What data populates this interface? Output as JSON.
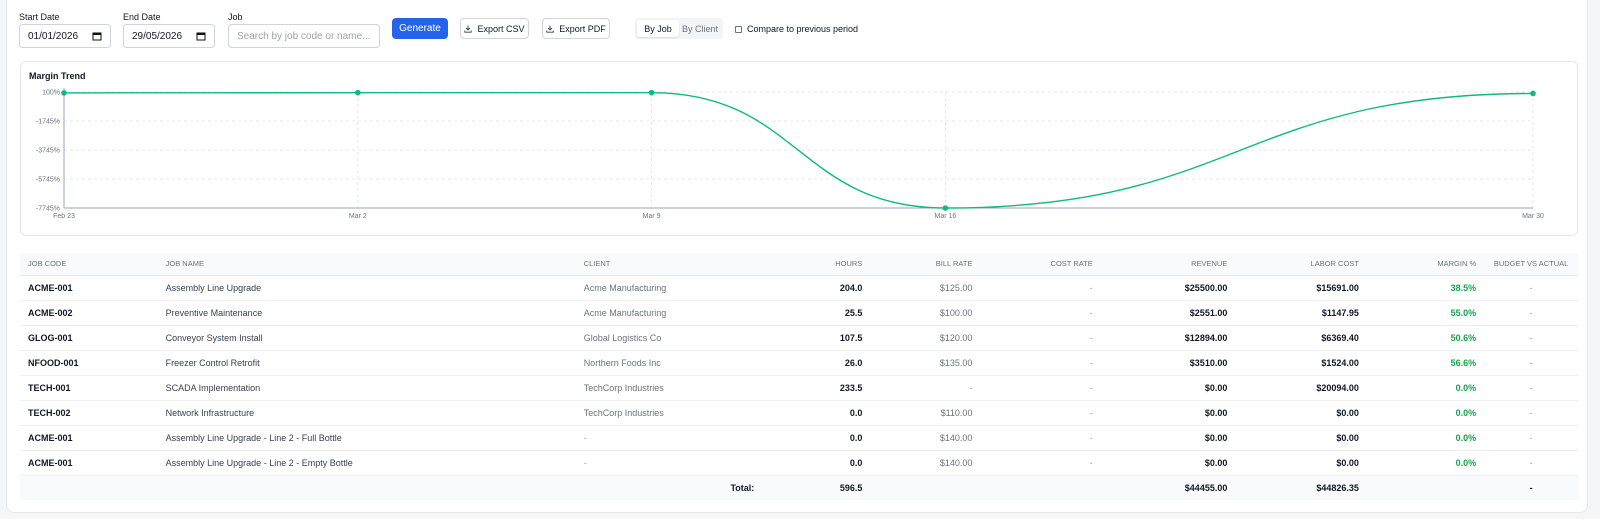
{
  "filters": {
    "start_label": "Start Date",
    "start_value": "01/01/2026",
    "end_label": "End Date",
    "end_value": "29/05/2026",
    "job_label": "Job",
    "job_placeholder": "Search by job code or name...",
    "generate_label": "Generate",
    "export_csv_label": "Export CSV",
    "export_pdf_label": "Export PDF",
    "view_by_job": "By Job",
    "view_by_client": "By Client",
    "compare_label": "Compare to previous period"
  },
  "chart_data": {
    "type": "line",
    "title": "Margin Trend",
    "x": [
      "Feb 23",
      "Mar 2",
      "Mar 9",
      "Mar 16",
      "Mar 30"
    ],
    "series": [
      {
        "values": [
          38.5,
          55.0,
          56.6,
          -7745,
          0.0
        ]
      }
    ],
    "y_ticks": [
      "100%",
      "-1745%",
      "-3745%",
      "-5745%",
      "-7745%"
    ],
    "ylim": [
      -7745,
      100
    ],
    "grid": true,
    "line_color": "#10b981"
  },
  "table": {
    "headers": [
      "JOB CODE",
      "JOB NAME",
      "CLIENT",
      "HOURS",
      "BILL RATE",
      "COST RATE",
      "REVENUE",
      "LABOR COST",
      "MARGIN %",
      "BUDGET VS ACTUAL"
    ],
    "rows": [
      [
        "ACME-001",
        "Assembly Line Upgrade",
        "Acme Manufacturing",
        "204.0",
        "$125.00",
        "-",
        "$25500.00",
        "$15691.00",
        "38.5%",
        "-"
      ],
      [
        "ACME-002",
        "Preventive Maintenance",
        "Acme Manufacturing",
        "25.5",
        "$100.00",
        "-",
        "$2551.00",
        "$1147.95",
        "55.0%",
        "-"
      ],
      [
        "GLOG-001",
        "Conveyor System Install",
        "Global Logistics Co",
        "107.5",
        "$120.00",
        "-",
        "$12894.00",
        "$6369.40",
        "50.6%",
        "-"
      ],
      [
        "NFOOD-001",
        "Freezer Control Retrofit",
        "Northern Foods Inc",
        "26.0",
        "$135.00",
        "-",
        "$3510.00",
        "$1524.00",
        "56.6%",
        "-"
      ],
      [
        "TECH-001",
        "SCADA Implementation",
        "TechCorp Industries",
        "233.5",
        "-",
        "-",
        "$0.00",
        "$20094.00",
        "0.0%",
        "-"
      ],
      [
        "TECH-002",
        "Network Infrastructure",
        "TechCorp Industries",
        "0.0",
        "$110.00",
        "-",
        "$0.00",
        "$0.00",
        "0.0%",
        "-"
      ],
      [
        "ACME-001",
        "Assembly Line Upgrade - Line 2 - Full Bottle",
        "-",
        "0.0",
        "$140.00",
        "-",
        "$0.00",
        "$0.00",
        "0.0%",
        "-"
      ],
      [
        "ACME-001",
        "Assembly Line Upgrade - Line 2 - Empty Bottle",
        "-",
        "0.0",
        "$140.00",
        "-",
        "$0.00",
        "$0.00",
        "0.0%",
        "-"
      ]
    ],
    "total": {
      "label": "Total:",
      "hours": "596.5",
      "revenue": "$44455.00",
      "labor_cost": "$44826.35",
      "budget": "-"
    }
  }
}
